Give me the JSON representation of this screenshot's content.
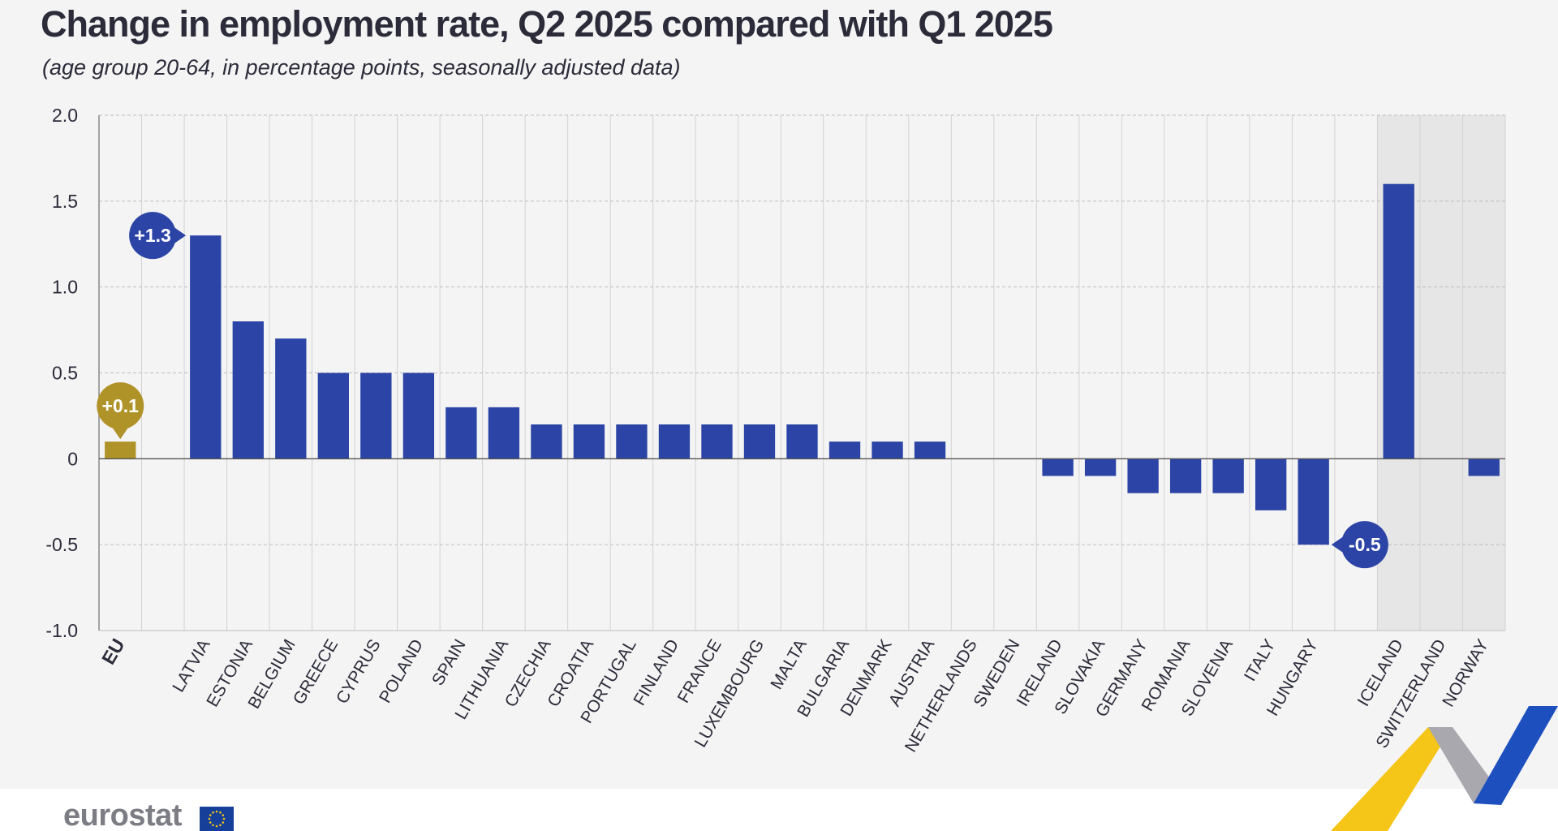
{
  "chart_data": {
    "type": "bar",
    "title": "Change in employment rate, Q2 2025 compared with Q1 2025",
    "subtitle": "(age group 20-64, in percentage points, seasonally adjusted data)",
    "xlabel": "",
    "ylabel": "",
    "ylim": [
      -1.0,
      2.0
    ],
    "yticks": [
      {
        "value": 2.0,
        "label": "2.0"
      },
      {
        "value": 1.5,
        "label": "1.5"
      },
      {
        "value": 1.0,
        "label": "1.0"
      },
      {
        "value": 0.5,
        "label": "0.5"
      },
      {
        "value": 0,
        "label": "0"
      },
      {
        "value": -0.5,
        "label": "-0.5"
      },
      {
        "value": -1.0,
        "label": "-1.0"
      }
    ],
    "grid": true,
    "highlighted_group": "non-EU (Iceland, Switzerland, Norway)",
    "categories": [
      "EU",
      "",
      "LATVIA",
      "ESTONIA",
      "BELGIUM",
      "GREECE",
      "CYPRUS",
      "POLAND",
      "SPAIN",
      "LITHUANIA",
      "CZECHIA",
      "CROATIA",
      "PORTUGAL",
      "FINLAND",
      "FRANCE",
      "LUXEMBOURG",
      "MALTA",
      "BULGARIA",
      "DENMARK",
      "AUSTRIA",
      "NETHERLANDS",
      "SWEDEN",
      "IRELAND",
      "SLOVAKIA",
      "GERMANY",
      "ROMANIA",
      "SLOVENIA",
      "ITALY",
      "HUNGARY",
      "",
      "ICELAND",
      "SWITZERLAND",
      "NORWAY"
    ],
    "values": [
      0.1,
      null,
      1.3,
      0.8,
      0.7,
      0.5,
      0.5,
      0.5,
      0.3,
      0.3,
      0.2,
      0.2,
      0.2,
      0.2,
      0.2,
      0.2,
      0.2,
      0.1,
      0.1,
      0.1,
      null,
      null,
      -0.1,
      -0.1,
      -0.2,
      -0.2,
      -0.2,
      -0.3,
      -0.5,
      null,
      1.6,
      null,
      -0.1
    ],
    "bar_colors": {
      "eu": "#b09328",
      "country": "#2b44a5"
    },
    "annotations": [
      {
        "category": "EU",
        "label": "+0.1",
        "value": 0.1,
        "color": "#b09328"
      },
      {
        "category": "LATVIA",
        "label": "+1.3",
        "value": 1.3,
        "color": "#2b44a5"
      },
      {
        "category": "HUNGARY",
        "label": "-0.5",
        "value": -0.5,
        "color": "#2b44a5"
      }
    ]
  },
  "footer": {
    "logo_text": "eurostat"
  },
  "colors": {
    "background": "#f4f4f4",
    "highlight_band": "#e6e6e6",
    "accent_yellow": "#f5c518",
    "accent_blue": "#1d4fbf",
    "accent_grey": "#9a9aa2"
  }
}
